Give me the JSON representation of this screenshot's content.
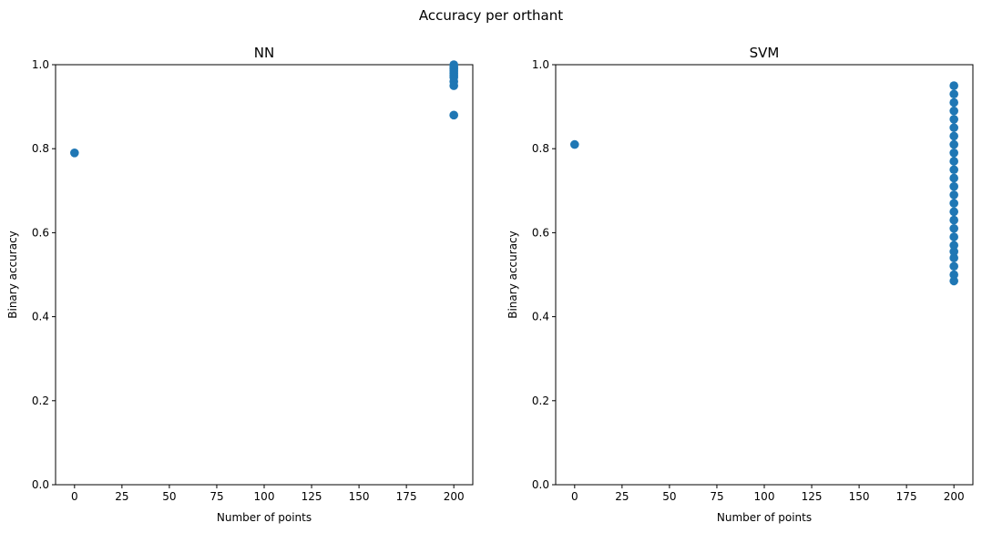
{
  "figure": {
    "suptitle": "Accuracy per orthant"
  },
  "chart_data": [
    {
      "type": "scatter",
      "title": "NN",
      "xlabel": "Number of points",
      "ylabel": "Binary accuracy",
      "xlim": [
        -10,
        210
      ],
      "ylim": [
        0,
        1.0
      ],
      "xticks": [
        0,
        25,
        50,
        75,
        100,
        125,
        150,
        175,
        200
      ],
      "yticks": [
        0.0,
        0.2,
        0.4,
        0.6,
        0.8,
        1.0
      ],
      "ytick_labels": [
        "0.0",
        "0.2",
        "0.4",
        "0.6",
        "0.8",
        "1.0"
      ],
      "grid": false,
      "marker_color": "#1f77b4",
      "points": [
        {
          "x": 0,
          "y": 0.79
        },
        {
          "x": 200,
          "y": 0.88
        },
        {
          "x": 200,
          "y": 0.95
        },
        {
          "x": 200,
          "y": 0.96
        },
        {
          "x": 200,
          "y": 0.97
        },
        {
          "x": 200,
          "y": 0.975
        },
        {
          "x": 200,
          "y": 0.98
        },
        {
          "x": 200,
          "y": 0.985
        },
        {
          "x": 200,
          "y": 0.99
        },
        {
          "x": 200,
          "y": 0.995
        },
        {
          "x": 200,
          "y": 1.0
        }
      ]
    },
    {
      "type": "scatter",
      "title": "SVM",
      "xlabel": "Number of points",
      "ylabel": "Binary accuracy",
      "xlim": [
        -10,
        210
      ],
      "ylim": [
        0,
        1.0
      ],
      "xticks": [
        0,
        25,
        50,
        75,
        100,
        125,
        150,
        175,
        200
      ],
      "yticks": [
        0.0,
        0.2,
        0.4,
        0.6,
        0.8,
        1.0
      ],
      "ytick_labels": [
        "0.0",
        "0.2",
        "0.4",
        "0.6",
        "0.8",
        "1.0"
      ],
      "grid": false,
      "marker_color": "#1f77b4",
      "points": [
        {
          "x": 0,
          "y": 0.81
        },
        {
          "x": 200,
          "y": 0.485
        },
        {
          "x": 200,
          "y": 0.5
        },
        {
          "x": 200,
          "y": 0.52
        },
        {
          "x": 200,
          "y": 0.54
        },
        {
          "x": 200,
          "y": 0.555
        },
        {
          "x": 200,
          "y": 0.57
        },
        {
          "x": 200,
          "y": 0.59
        },
        {
          "x": 200,
          "y": 0.61
        },
        {
          "x": 200,
          "y": 0.63
        },
        {
          "x": 200,
          "y": 0.65
        },
        {
          "x": 200,
          "y": 0.67
        },
        {
          "x": 200,
          "y": 0.69
        },
        {
          "x": 200,
          "y": 0.71
        },
        {
          "x": 200,
          "y": 0.73
        },
        {
          "x": 200,
          "y": 0.75
        },
        {
          "x": 200,
          "y": 0.77
        },
        {
          "x": 200,
          "y": 0.79
        },
        {
          "x": 200,
          "y": 0.81
        },
        {
          "x": 200,
          "y": 0.83
        },
        {
          "x": 200,
          "y": 0.85
        },
        {
          "x": 200,
          "y": 0.87
        },
        {
          "x": 200,
          "y": 0.89
        },
        {
          "x": 200,
          "y": 0.91
        },
        {
          "x": 200,
          "y": 0.93
        },
        {
          "x": 200,
          "y": 0.95
        }
      ]
    }
  ]
}
